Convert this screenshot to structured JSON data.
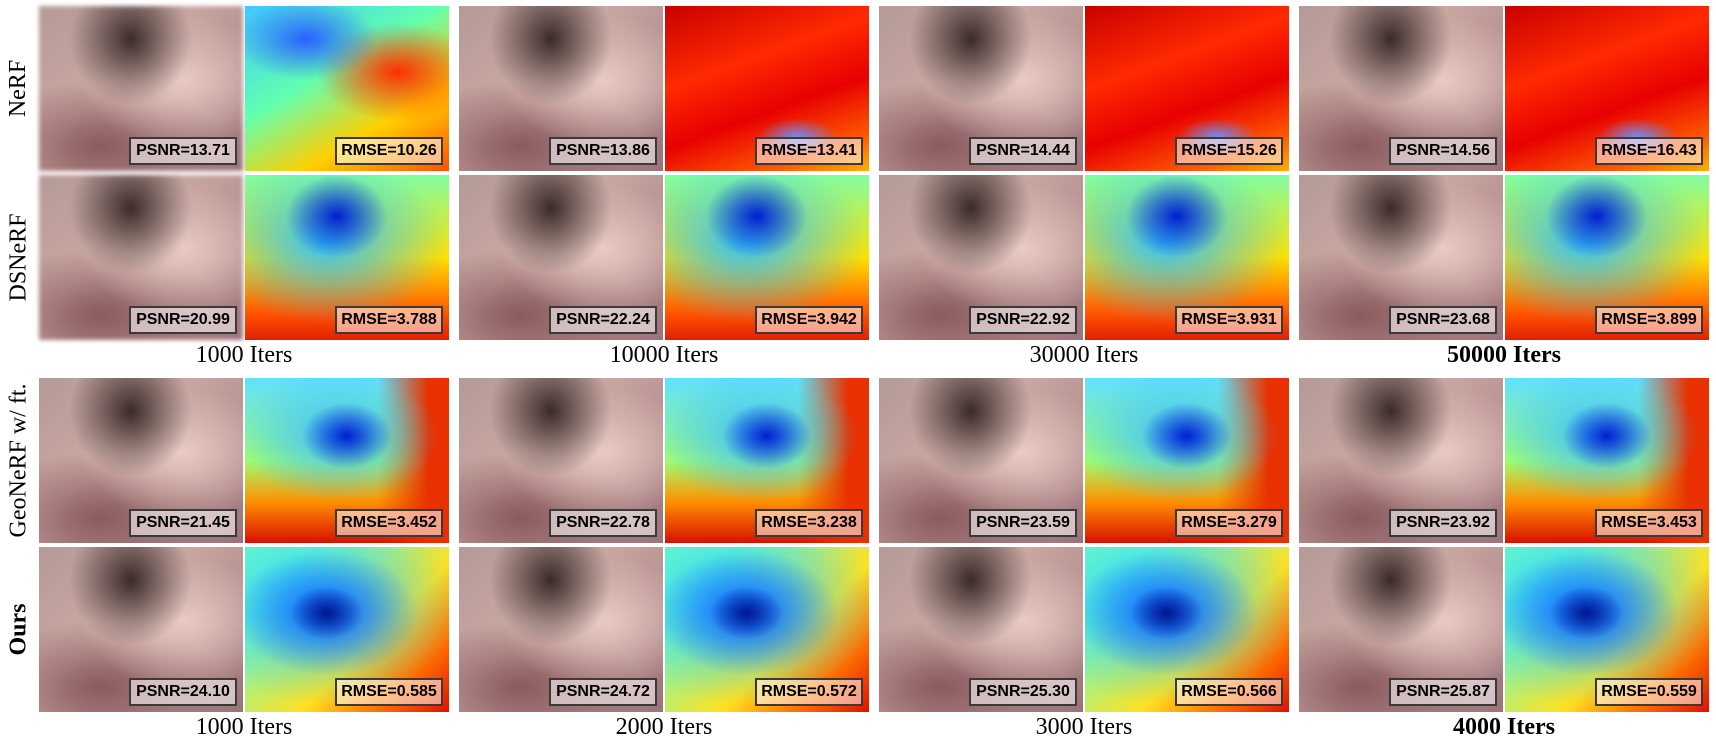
{
  "sections": [
    {
      "rows": [
        {
          "label": "NeRF",
          "psnr": [
            "PSNR=13.71",
            "PSNR=13.86",
            "PSNR=14.44",
            "PSNR=14.56"
          ],
          "rmse": [
            "RMSE=10.26",
            "RMSE=13.41",
            "RMSE=15.26",
            "RMSE=16.43"
          ]
        },
        {
          "label": "DSNeRF",
          "psnr": [
            "PSNR=20.99",
            "PSNR=22.24",
            "PSNR=22.92",
            "PSNR=23.68"
          ],
          "rmse": [
            "RMSE=3.788",
            "RMSE=3.942",
            "RMSE=3.931",
            "RMSE=3.899"
          ]
        }
      ],
      "iters": [
        "1000 Iters",
        "10000 Iters",
        "30000 Iters",
        "50000 Iters"
      ]
    },
    {
      "rows": [
        {
          "label": "GeoNeRF w/ ft.",
          "psnr": [
            "PSNR=21.45",
            "PSNR=22.78",
            "PSNR=23.59",
            "PSNR=23.92"
          ],
          "rmse": [
            "RMSE=3.452",
            "RMSE=3.238",
            "RMSE=3.279",
            "RMSE=3.453"
          ]
        },
        {
          "label": "Ours",
          "psnr": [
            "PSNR=24.10",
            "PSNR=24.72",
            "PSNR=25.30",
            "PSNR=25.87"
          ],
          "rmse": [
            "RMSE=0.585",
            "RMSE=0.572",
            "RMSE=0.566",
            "RMSE=0.559"
          ]
        }
      ],
      "iters": [
        "1000 Iters",
        "2000 Iters",
        "3000 Iters",
        "4000 Iters"
      ]
    }
  ]
}
